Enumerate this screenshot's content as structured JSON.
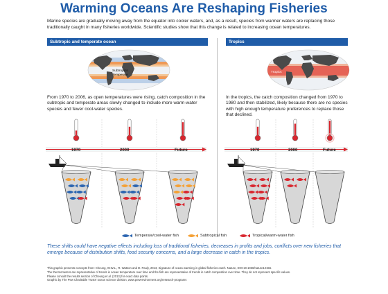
{
  "title": "Warming Oceans Are Reshaping Fisheries",
  "intro": "Marine species are gradually moving away from the equator into cooler waters, and, as a result, species from warmer waters are replacing those traditionally caught in many fisheries worldwide. Scientific studies show that this change is related to increasing ocean temperatures.",
  "left": {
    "header": "Subtropic and temperate ocean",
    "map_labels": {
      "subtropics": "Subtropics",
      "temperate": "Temperate"
    },
    "description": "From 1970 to 2006, as open temperatures were rising, catch composition in the subtropic and temperate areas slowly changed to include more warm-water species and fewer cool-water species.",
    "timeline": [
      "1970",
      "2000",
      "Future"
    ]
  },
  "right": {
    "header": "Tropics",
    "map_labels": {
      "tropics": "Tropics"
    },
    "description": "In the tropics, the catch composition changed from 1970 to 1980 and then stabilized, likely because there are no species with high enough temperature preferences to replace those that declined.",
    "timeline": [
      "1970",
      "2000",
      "Future"
    ]
  },
  "legend": {
    "temperate": "Temperate/cool-water fish",
    "subtropical": "Subtropical fish",
    "tropical": "Tropical/warm-water fish"
  },
  "colors": {
    "title_blue": "#1f5ca8",
    "temperate_fish": "#2a64b0",
    "subtropical_fish": "#f5a033",
    "tropical_fish": "#d8262e",
    "thermometer_red": "#d8262e",
    "net_fill": "#d7d7d7"
  },
  "catch": {
    "left_1970": {
      "temperate": 5,
      "subtropical": 2,
      "tropical": 1
    },
    "left_2000": {
      "temperate": 3,
      "subtropical": 3,
      "tropical": 2
    },
    "left_future": {
      "temperate": 0,
      "subtropical": 5,
      "tropical": 4
    },
    "right_1970": {
      "temperate": 0,
      "subtropical": 0,
      "tropical": 8
    },
    "right_2000": {
      "temperate": 0,
      "subtropical": 0,
      "tropical": 3
    },
    "right_future": {
      "temperate": 0,
      "subtropical": 0,
      "tropical": 0
    }
  },
  "consequence": "These shifts could have negative effects including loss of traditional fisheries, decreases in profits and jobs, conflicts over new fisheries that emerge because of distribution shifts, food security concerns, and a large decrease in catch in the tropics.",
  "footnotes": [
    "This graphic presents concepts from: Cheung, W.W.L., R. Watson and D. Pauly, 2013, Signature of ocean warming in global fisheries catch. Nature, DOI:10.1038/nature12156.",
    "The thermometers are representative of trends in ocean temperature over time and the fish are representative of trends in catch composition over time. They do not represent specific values.",
    "Please consult the results section of Cheung et al. (2013) for exact data points.",
    "Graphic by The Pew Charitable Trusts' ocean science division, www.pewenvironment.org/research-programs"
  ]
}
